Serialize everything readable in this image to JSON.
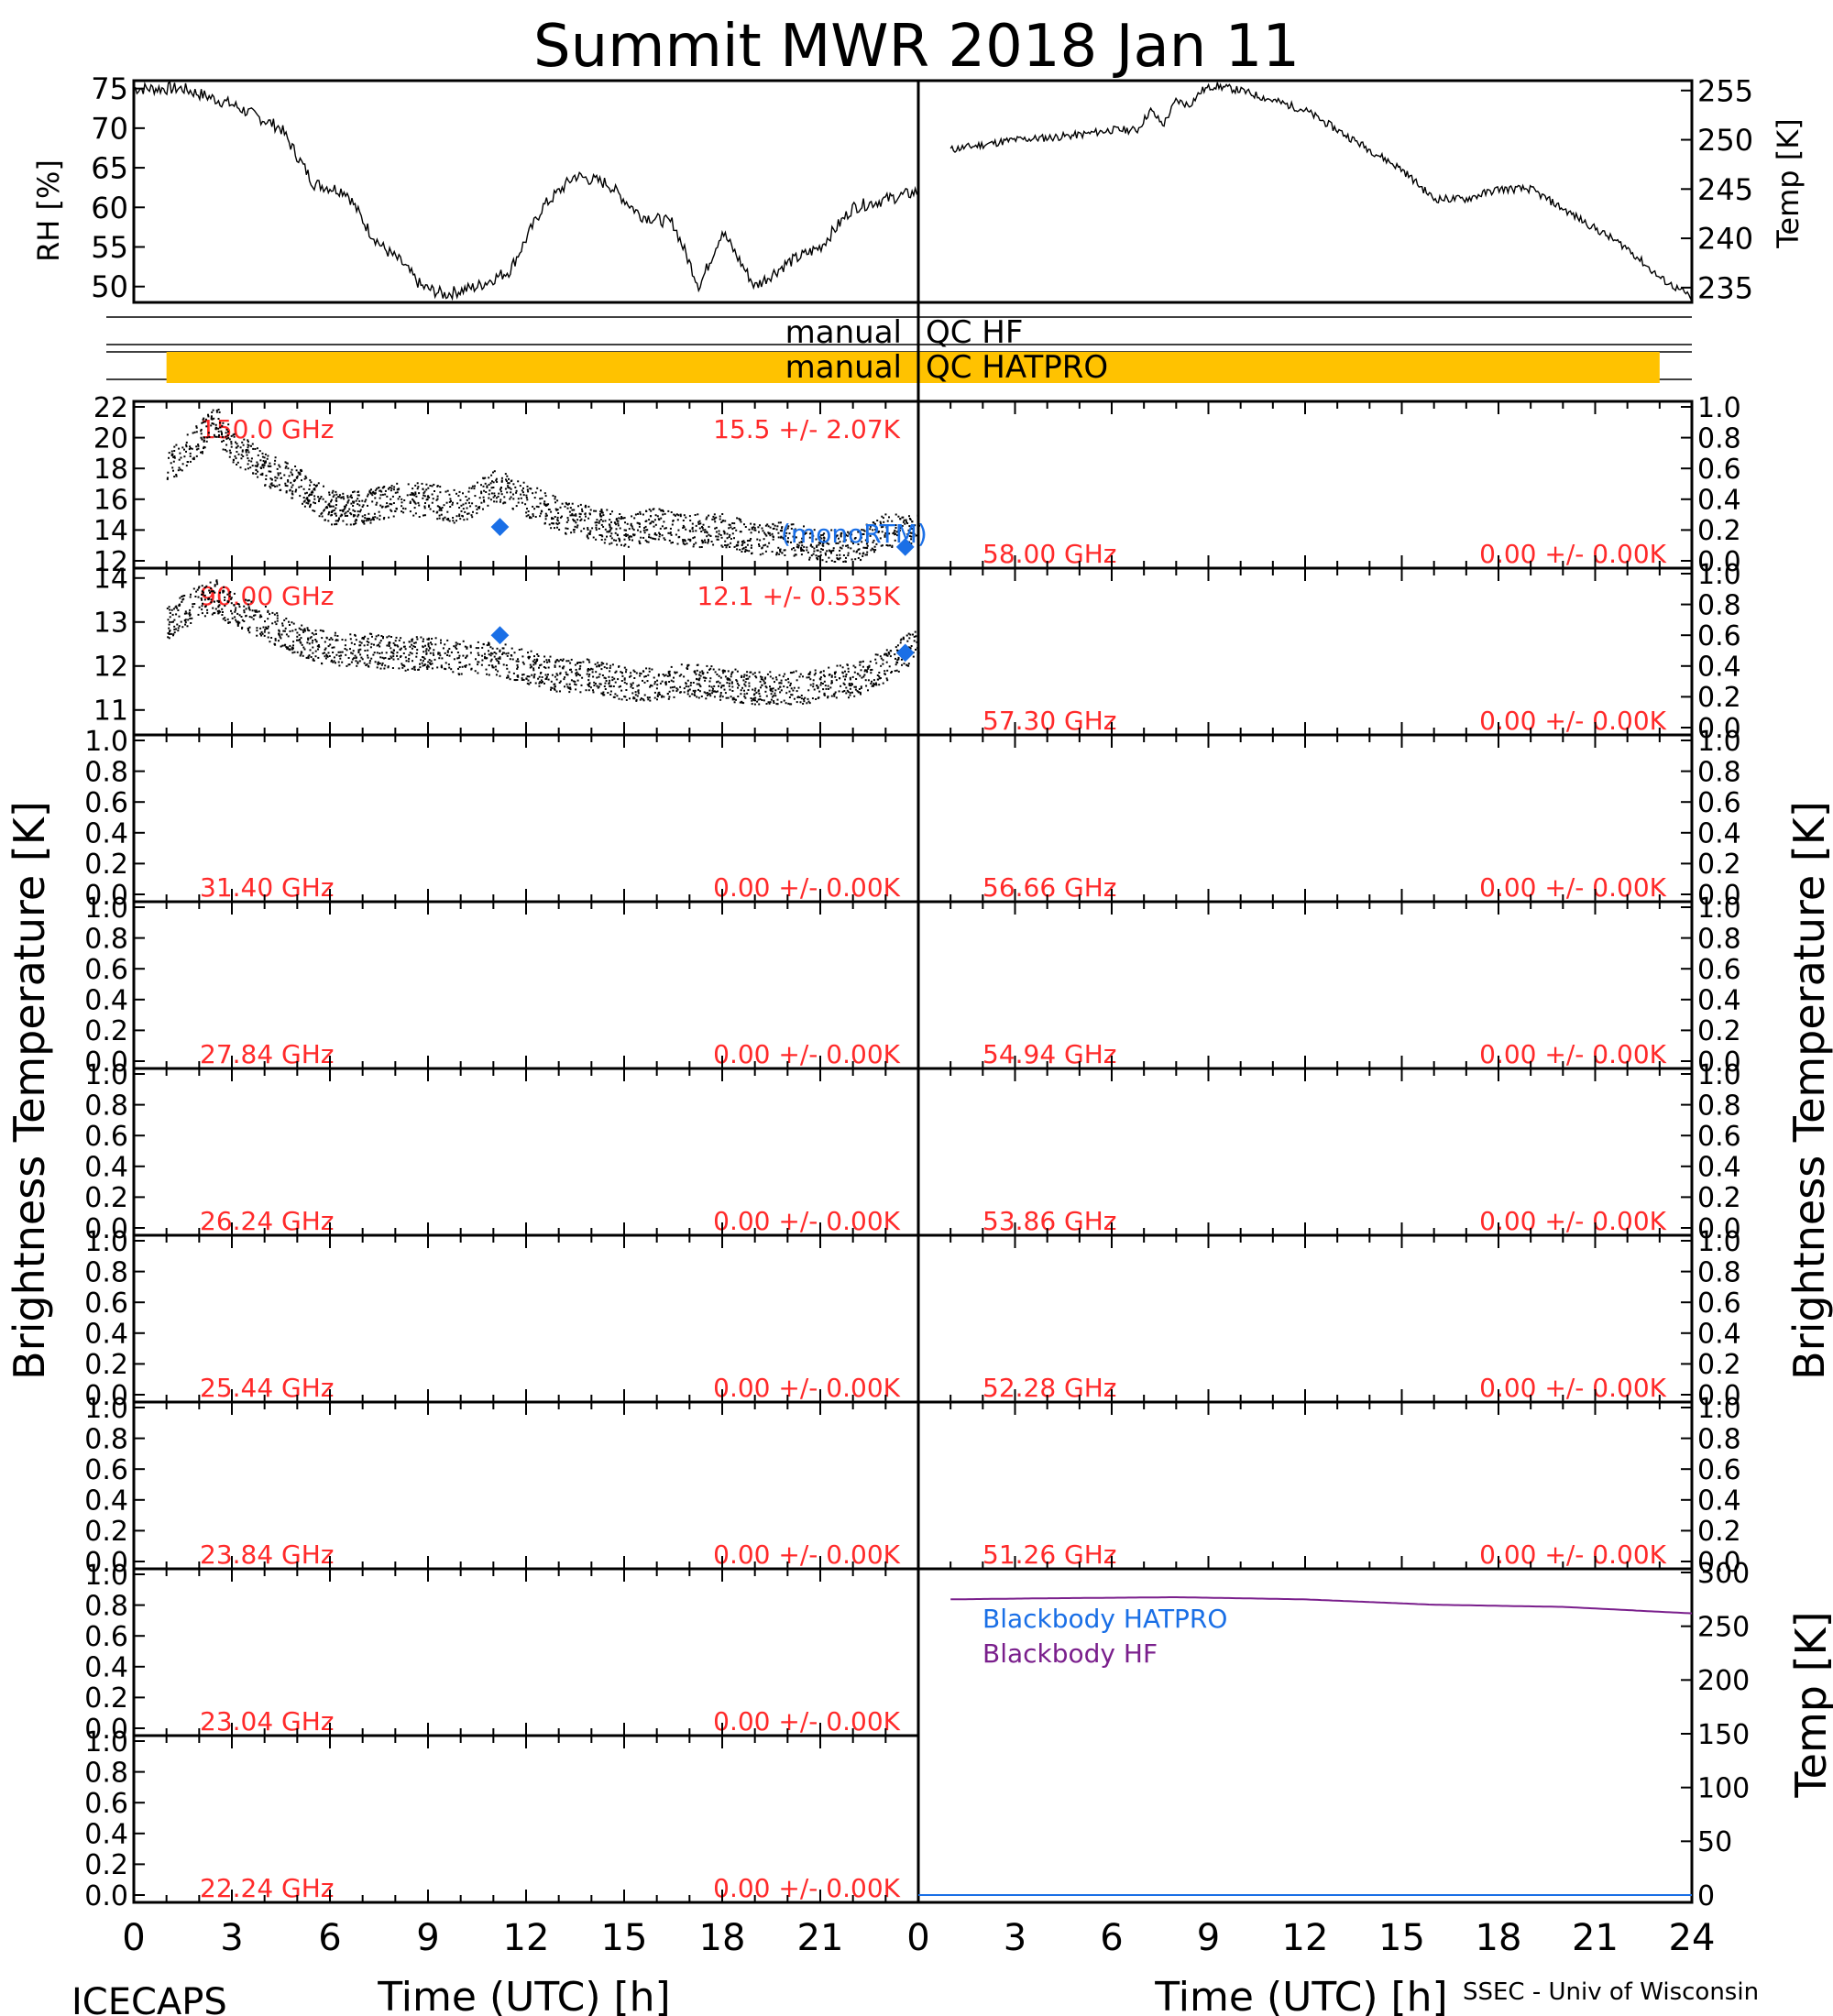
{
  "title": "Summit MWR 2018 Jan 11",
  "footer": {
    "left": "ICECAPS",
    "right": "SSEC - Univ of Wisconsin"
  },
  "labels": {
    "rh": "RH [%]",
    "temp_top": "Temp [K]",
    "tb_left": "Brightness Temperature [K]",
    "tb_right": "Brightness Temperature [K]",
    "temp_bottom": "Temp [K]",
    "time_left": "Time (UTC) [h]",
    "time_right": "Time (UTC) [h]"
  },
  "colors": {
    "red": "#ff2a2a",
    "blue": "#1a6fe6",
    "purple": "#7a1f8c",
    "orange": "#ffc200",
    "black": "#000000"
  },
  "qc": [
    {
      "label_left": "manual",
      "label_right": "QC HF",
      "bar_from_h": null,
      "bar_to_h": null
    },
    {
      "label_left": "manual",
      "label_right": "QC HATPRO",
      "bar_from_h": 1,
      "bar_to_h": 47
    }
  ],
  "chart_data": [
    {
      "panel": "rh",
      "type": "line",
      "ylabel": "RH [%]",
      "xlim": [
        0,
        24
      ],
      "ylim": [
        48,
        76
      ],
      "yticks": [
        50,
        55,
        60,
        65,
        70,
        75
      ],
      "x": [
        0,
        1.5,
        3,
        4.5,
        5.5,
        6.5,
        7.2,
        7.6,
        8.2,
        8.8,
        9.5,
        10.5,
        11.5,
        12.5,
        13.5,
        14.5,
        15.5,
        16.5,
        17.3,
        18.0,
        19.0,
        20.0,
        21.0,
        22.0,
        23.0,
        24.0
      ],
      "y": [
        75,
        75,
        73,
        70,
        63,
        62,
        57,
        55,
        53,
        50,
        49,
        50,
        52,
        60,
        64,
        63,
        59,
        58,
        50,
        57,
        50,
        53,
        55,
        60,
        61,
        62
      ]
    },
    {
      "panel": "temp_top",
      "type": "line",
      "ylabel": "Temp [K]",
      "xlim": [
        0,
        24
      ],
      "ylim": [
        233.5,
        256
      ],
      "yticks": [
        235,
        240,
        245,
        250,
        255
      ],
      "x": [
        1,
        2,
        3,
        4,
        5,
        6,
        6.8,
        7.2,
        7.6,
        8.0,
        8.4,
        8.8,
        9.2,
        10,
        11,
        12,
        13,
        14,
        15,
        16,
        17,
        18,
        19,
        20,
        21,
        22,
        23,
        24
      ],
      "y": [
        249,
        249.5,
        250,
        250.2,
        250.5,
        251,
        251,
        253,
        251.5,
        254,
        253.5,
        255,
        255.5,
        255,
        254,
        253,
        251,
        249,
        247,
        244,
        244,
        245,
        245,
        243,
        241,
        239,
        236,
        234
      ]
    },
    {
      "panel": "150.0 GHz",
      "type": "scatter",
      "label": "150.0 GHz",
      "stats": "15.5 +/- 2.07K",
      "xlim": [
        0,
        24
      ],
      "ylim": [
        12,
        22
      ],
      "yticks": [
        12,
        14,
        16,
        18,
        20,
        22
      ],
      "x": [
        1,
        2,
        2.5,
        3,
        4,
        5,
        6,
        7,
        8,
        9,
        10,
        11,
        12,
        13,
        14,
        15,
        16,
        17,
        18,
        19,
        20,
        21,
        22,
        23,
        24
      ],
      "y": [
        18,
        20,
        21,
        19.5,
        18,
        17,
        15.5,
        15.5,
        16,
        16,
        15.5,
        17,
        16,
        15,
        14.5,
        14,
        14.5,
        14,
        14,
        13.5,
        13.5,
        13,
        13,
        14,
        14
      ],
      "model": {
        "name": "(monoRTM)",
        "x": [
          11.2,
          23.6
        ],
        "y": [
          14.2,
          12.9
        ]
      }
    },
    {
      "panel": "90.00 GHz",
      "type": "scatter",
      "label": "90.00 GHz",
      "stats": "12.1 +/- 0.535K",
      "xlim": [
        0,
        24
      ],
      "ylim": [
        10.6,
        14.1
      ],
      "yticks": [
        11,
        12,
        13,
        14
      ],
      "x": [
        1,
        2,
        2.5,
        3,
        4,
        5,
        6,
        7,
        8,
        9,
        10,
        11,
        12,
        13,
        14,
        15,
        16,
        17,
        18,
        19,
        20,
        21,
        22,
        23,
        24
      ],
      "y": [
        13,
        13.5,
        13.6,
        13.3,
        13,
        12.6,
        12.4,
        12.4,
        12.3,
        12.3,
        12.2,
        12.2,
        12,
        11.8,
        11.8,
        11.6,
        11.6,
        11.7,
        11.6,
        11.5,
        11.5,
        11.6,
        11.7,
        12,
        12.6
      ],
      "model": {
        "name": "",
        "x": [
          11.2,
          23.6
        ],
        "y": [
          12.7,
          12.3
        ]
      }
    },
    {
      "panel": "empty",
      "label": "31.40 GHz",
      "stats": "0.00 +/- 0.00K",
      "side": "left"
    },
    {
      "panel": "empty",
      "label": "27.84 GHz",
      "stats": "0.00 +/- 0.00K",
      "side": "left"
    },
    {
      "panel": "empty",
      "label": "26.24 GHz",
      "stats": "0.00 +/- 0.00K",
      "side": "left"
    },
    {
      "panel": "empty",
      "label": "25.44 GHz",
      "stats": "0.00 +/- 0.00K",
      "side": "left"
    },
    {
      "panel": "empty",
      "label": "23.84 GHz",
      "stats": "0.00 +/- 0.00K",
      "side": "left"
    },
    {
      "panel": "empty",
      "label": "23.04 GHz",
      "stats": "0.00 +/- 0.00K",
      "side": "left"
    },
    {
      "panel": "empty",
      "label": "22.24 GHz",
      "stats": "0.00 +/- 0.00K",
      "side": "left"
    },
    {
      "panel": "empty",
      "label": "58.00 GHz",
      "stats": "0.00 +/- 0.00K",
      "side": "right"
    },
    {
      "panel": "empty",
      "label": "57.30 GHz",
      "stats": "0.00 +/- 0.00K",
      "side": "right"
    },
    {
      "panel": "empty",
      "label": "56.66 GHz",
      "stats": "0.00 +/- 0.00K",
      "side": "right"
    },
    {
      "panel": "empty",
      "label": "54.94 GHz",
      "stats": "0.00 +/- 0.00K",
      "side": "right"
    },
    {
      "panel": "empty",
      "label": "53.86 GHz",
      "stats": "0.00 +/- 0.00K",
      "side": "right"
    },
    {
      "panel": "empty",
      "label": "52.28 GHz",
      "stats": "0.00 +/- 0.00K",
      "side": "right"
    },
    {
      "panel": "empty",
      "label": "51.26 GHz",
      "stats": "0.00 +/- 0.00K",
      "side": "right"
    },
    {
      "panel": "blackbody",
      "type": "line",
      "ylabel": "Temp [K]",
      "xlim": [
        0,
        24
      ],
      "ylim": [
        0,
        300
      ],
      "yticks": [
        0,
        50,
        100,
        150,
        200,
        250,
        300
      ],
      "series": [
        {
          "name": "Blackbody HATPRO",
          "color": "#1a6fe6",
          "x": [
            0,
            24
          ],
          "y": [
            0,
            0
          ]
        },
        {
          "name": "Blackbody HF",
          "color": "#7a1f8c",
          "x": [
            1,
            4,
            8,
            12,
            16,
            20,
            24
          ],
          "y": [
            275,
            276,
            277,
            275,
            270,
            268,
            262
          ]
        }
      ]
    }
  ],
  "empty_yticks": [
    "0.0",
    "0.2",
    "0.4",
    "0.6",
    "0.8",
    "1.0"
  ],
  "xticks_left": [
    0,
    3,
    6,
    9,
    12,
    15,
    18,
    21
  ],
  "xticks_right": [
    0,
    3,
    6,
    9,
    12,
    15,
    18,
    21,
    24
  ]
}
